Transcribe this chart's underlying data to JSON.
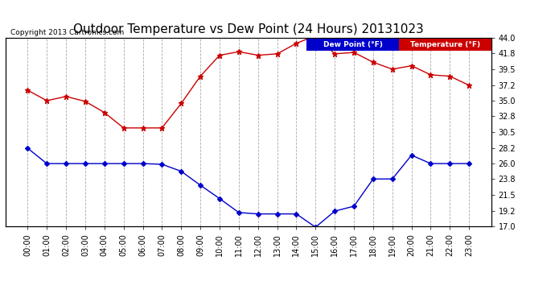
{
  "title": "Outdoor Temperature vs Dew Point (24 Hours) 20131023",
  "copyright": "Copyright 2013 Cartronics.com",
  "hours": [
    "00:00",
    "01:00",
    "02:00",
    "03:00",
    "04:00",
    "05:00",
    "06:00",
    "07:00",
    "08:00",
    "09:00",
    "10:00",
    "11:00",
    "12:00",
    "13:00",
    "14:00",
    "15:00",
    "16:00",
    "17:00",
    "18:00",
    "19:00",
    "20:00",
    "21:00",
    "22:00",
    "23:00"
  ],
  "temperature": [
    36.5,
    35.0,
    35.6,
    34.9,
    33.3,
    31.1,
    31.1,
    31.1,
    34.6,
    38.5,
    41.5,
    42.0,
    41.5,
    41.7,
    43.2,
    44.3,
    41.7,
    41.9,
    40.5,
    39.5,
    40.0,
    38.7,
    38.5,
    37.2
  ],
  "dewpoint": [
    28.2,
    26.0,
    26.0,
    26.0,
    26.0,
    26.0,
    26.0,
    25.9,
    24.9,
    22.9,
    21.0,
    19.0,
    18.8,
    18.8,
    18.8,
    16.9,
    19.2,
    19.9,
    23.8,
    23.8,
    27.2,
    26.0,
    26.0,
    26.0
  ],
  "temp_color": "#cc0000",
  "dew_color": "#0000cc",
  "ylim": [
    17.0,
    44.0
  ],
  "yticks": [
    44.0,
    41.8,
    39.5,
    37.2,
    35.0,
    32.8,
    30.5,
    28.2,
    26.0,
    23.8,
    21.5,
    19.2,
    17.0
  ],
  "bg_color": "#ffffff",
  "plot_bg": "#ffffff",
  "grid_color": "#aaaaaa",
  "legend_dew_bg": "#0000cc",
  "legend_temp_bg": "#cc0000",
  "title_fontsize": 11,
  "tick_fontsize": 7,
  "copyright_fontsize": 6.5
}
